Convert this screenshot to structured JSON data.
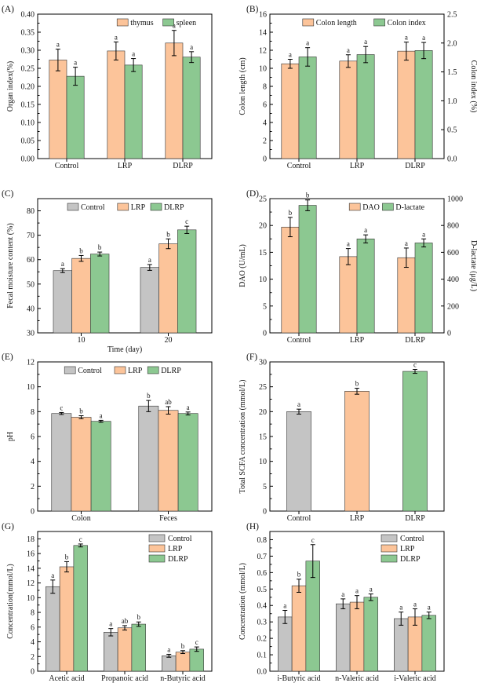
{
  "colors": {
    "Control": "#c4c4c4",
    "LRP": "#fcc49a",
    "DLRP": "#8cc891",
    "thymus": "#fcc49a",
    "spleen": "#8cc891",
    "Colon length": "#fcc49a",
    "Colon index": "#8cc891",
    "DAO": "#fcc49a",
    "D-lactate": "#8cc891"
  },
  "chart_data": [
    {
      "id": "A",
      "panel_label": "(A)",
      "type": "bar",
      "ylabel": "Organ index(%)",
      "ylim": [
        0,
        0.4
      ],
      "yticks": [
        "0.00",
        "0.05",
        "0.10",
        "0.15",
        "0.20",
        "0.25",
        "0.30",
        "0.35",
        "0.40"
      ],
      "legend_position": "top-right",
      "categories": [
        "Control",
        "LRP",
        "DLRP"
      ],
      "series": [
        {
          "name": "thymus",
          "values": [
            0.273,
            0.298,
            0.32
          ],
          "errors": [
            0.03,
            0.025,
            0.035
          ],
          "sig": [
            "a",
            "a",
            "a"
          ]
        },
        {
          "name": "spleen",
          "values": [
            0.228,
            0.259,
            0.281
          ],
          "errors": [
            0.025,
            0.018,
            0.015
          ],
          "sig": [
            "a",
            "a",
            "a"
          ]
        }
      ]
    },
    {
      "id": "B",
      "panel_label": "(B)",
      "type": "bar",
      "ylabel": "Colon length (cm)",
      "ylabel_right": "Colon index (%)",
      "ylim": [
        0,
        16
      ],
      "ylim_right": [
        0,
        2.5
      ],
      "yticks": [
        "0",
        "2",
        "4",
        "6",
        "8",
        "10",
        "12",
        "14",
        "16"
      ],
      "yticks_right": [
        "0.0",
        "0.5",
        "1.0",
        "1.5",
        "2.0",
        "2.5"
      ],
      "legend_position": "top-right",
      "categories": [
        "Control",
        "LRP",
        "DLRP"
      ],
      "series": [
        {
          "name": "Colon length",
          "axis": "left",
          "values": [
            10.5,
            10.8,
            11.9
          ],
          "errors": [
            0.5,
            0.7,
            1.0
          ],
          "sig": [
            "a",
            "a",
            "a"
          ]
        },
        {
          "name": "Colon index",
          "axis": "right",
          "values": [
            1.76,
            1.8,
            1.87
          ],
          "errors": [
            0.16,
            0.14,
            0.14
          ],
          "sig": [
            "a",
            "a",
            "a"
          ]
        }
      ]
    },
    {
      "id": "C",
      "panel_label": "(C)",
      "type": "bar",
      "ylabel": "Fecal moisture content (%)",
      "xlabel": "Time (day)",
      "ylim": [
        30,
        85
      ],
      "yticks": [
        "30",
        "40",
        "50",
        "60",
        "70",
        "80"
      ],
      "legend_position": "top-left",
      "categories": [
        "10",
        "20"
      ],
      "series": [
        {
          "name": "Control",
          "values": [
            55.5,
            56.8
          ],
          "errors": [
            0.8,
            1.2
          ],
          "sig": [
            "a",
            "a"
          ]
        },
        {
          "name": "LRP",
          "values": [
            60.5,
            66.5
          ],
          "errors": [
            1.2,
            2.0
          ],
          "sig": [
            "b",
            "b"
          ]
        },
        {
          "name": "DLRP",
          "values": [
            62.3,
            72.2
          ],
          "errors": [
            0.8,
            1.5
          ],
          "sig": [
            "b",
            "c"
          ]
        }
      ]
    },
    {
      "id": "D",
      "panel_label": "(D)",
      "type": "bar",
      "ylabel": "DAO (U/mL)",
      "ylabel_right": "D-lactate (μg/L)",
      "ylim": [
        0,
        25
      ],
      "ylim_right": [
        0,
        1000
      ],
      "yticks": [
        "0",
        "5",
        "10",
        "15",
        "20",
        "25"
      ],
      "yticks_right": [
        "0",
        "200",
        "400",
        "600",
        "800",
        "1000"
      ],
      "legend_position": "top-right",
      "categories": [
        "Control",
        "LRP",
        "DLRP"
      ],
      "series": [
        {
          "name": "DAO",
          "axis": "left",
          "values": [
            19.7,
            14.2,
            14.0
          ],
          "errors": [
            1.8,
            1.5,
            1.8
          ],
          "sig": [
            "b",
            "a",
            "a"
          ]
        },
        {
          "name": "D-lactate",
          "axis": "right",
          "values": [
            950,
            700,
            670
          ],
          "errors": [
            40,
            30,
            30
          ],
          "sig": [
            "b",
            "a",
            "a"
          ]
        }
      ]
    },
    {
      "id": "E",
      "panel_label": "(E)",
      "type": "bar",
      "ylabel": "pH",
      "ylim": [
        0,
        12
      ],
      "yticks": [
        "0",
        "2",
        "4",
        "6",
        "8",
        "10",
        "12"
      ],
      "legend_position": "top",
      "categories": [
        "Colon",
        "Feces"
      ],
      "series": [
        {
          "name": "Control",
          "values": [
            7.85,
            8.45
          ],
          "errors": [
            0.08,
            0.45
          ],
          "sig": [
            "c",
            "b"
          ]
        },
        {
          "name": "LRP",
          "values": [
            7.55,
            8.1
          ],
          "errors": [
            0.12,
            0.3
          ],
          "sig": [
            "b",
            "ab"
          ]
        },
        {
          "name": "DLRP",
          "values": [
            7.22,
            7.85
          ],
          "errors": [
            0.08,
            0.12
          ],
          "sig": [
            "a",
            "a"
          ]
        }
      ]
    },
    {
      "id": "F",
      "panel_label": "(F)",
      "type": "bar",
      "ylabel": "Total SCFA concentration (mmol/L)",
      "ylim": [
        0,
        30
      ],
      "yticks": [
        "0",
        "5",
        "10",
        "15",
        "20",
        "25",
        "30"
      ],
      "categories": [
        "Control",
        "LRP",
        "DLRP"
      ],
      "series": [
        {
          "name": "Total SCFA",
          "values": [
            20.0,
            24.1,
            28.1
          ],
          "errors": [
            0.5,
            0.6,
            0.4
          ],
          "sig": [
            "a",
            "b",
            "c"
          ],
          "category_colors": true
        }
      ]
    },
    {
      "id": "G",
      "panel_label": "(G)",
      "type": "bar",
      "ylabel": "Concentration(mmol/L)",
      "ylim": [
        0,
        19
      ],
      "yticks": [
        "0",
        "2",
        "4",
        "6",
        "8",
        "10",
        "12",
        "14",
        "16",
        "18"
      ],
      "legend_position": "top-right",
      "categories": [
        "Acetic acid",
        "Propanoic acid",
        "n-Butyric acid"
      ],
      "series": [
        {
          "name": "Control",
          "values": [
            11.5,
            5.3,
            2.1
          ],
          "errors": [
            0.9,
            0.5,
            0.2
          ],
          "sig": [
            "a",
            "a",
            "a"
          ]
        },
        {
          "name": "LRP",
          "values": [
            14.2,
            5.9,
            2.6
          ],
          "errors": [
            0.7,
            0.3,
            0.2
          ],
          "sig": [
            "b",
            "ab",
            "b"
          ]
        },
        {
          "name": "DLRP",
          "values": [
            17.1,
            6.4,
            3.0
          ],
          "errors": [
            0.2,
            0.3,
            0.3
          ],
          "sig": [
            "c",
            "b",
            "c"
          ]
        }
      ]
    },
    {
      "id": "H",
      "panel_label": "(H)",
      "type": "bar",
      "ylabel": "Concentration (mmol/L)",
      "ylim": [
        0,
        0.85
      ],
      "yticks": [
        "0.0",
        "0.1",
        "0.2",
        "0.3",
        "0.4",
        "0.5",
        "0.6",
        "0.7",
        "0.8"
      ],
      "legend_position": "top-right",
      "categories": [
        "i-Butyric acid",
        "n-Valeric acid",
        "i-Valeric acid"
      ],
      "series": [
        {
          "name": "Control",
          "values": [
            0.33,
            0.41,
            0.32
          ],
          "errors": [
            0.04,
            0.03,
            0.04
          ],
          "sig": [
            "a",
            "a",
            "a"
          ]
        },
        {
          "name": "LRP",
          "values": [
            0.52,
            0.42,
            0.33
          ],
          "errors": [
            0.04,
            0.04,
            0.05
          ],
          "sig": [
            "b",
            "a",
            "a"
          ]
        },
        {
          "name": "DLRP",
          "values": [
            0.67,
            0.45,
            0.34
          ],
          "errors": [
            0.1,
            0.02,
            0.02
          ],
          "sig": [
            "c",
            "a",
            "a"
          ]
        }
      ]
    }
  ]
}
